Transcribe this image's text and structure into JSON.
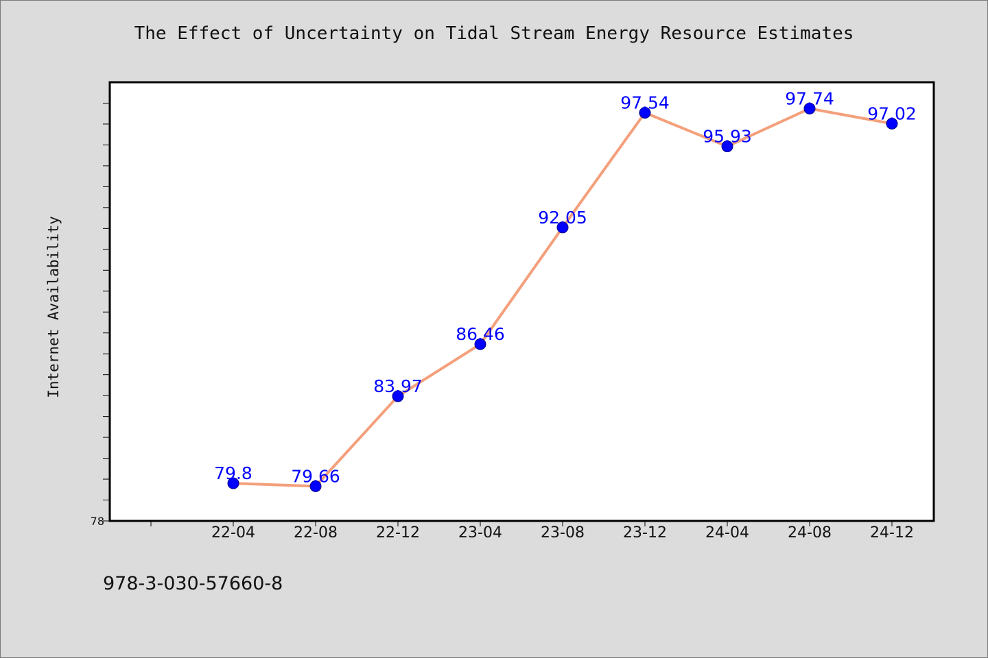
{
  "chart_data": {
    "type": "line",
    "title": "The Effect of Uncertainty on Tidal Stream Energy Resource Estimates",
    "xlabel": "",
    "ylabel": "Internet Availability",
    "categories": [
      "22-04",
      "22-08",
      "22-12",
      "23-04",
      "23-08",
      "23-12",
      "24-04",
      "24-08",
      "24-12"
    ],
    "series": [
      {
        "values": [
          79.8,
          79.66,
          83.97,
          86.46,
          92.05,
          97.54,
          95.93,
          97.74,
          97.02
        ],
        "line_color": "#f4a07c",
        "marker_color": "#0000ff",
        "label_color": "#0000ff"
      }
    ],
    "ylim": [
      78,
      99
    ],
    "y_tick_labels": [
      "78"
    ],
    "grid": false,
    "legend": "none"
  },
  "footer": {
    "isbn": "978-3-030-57660-8"
  }
}
